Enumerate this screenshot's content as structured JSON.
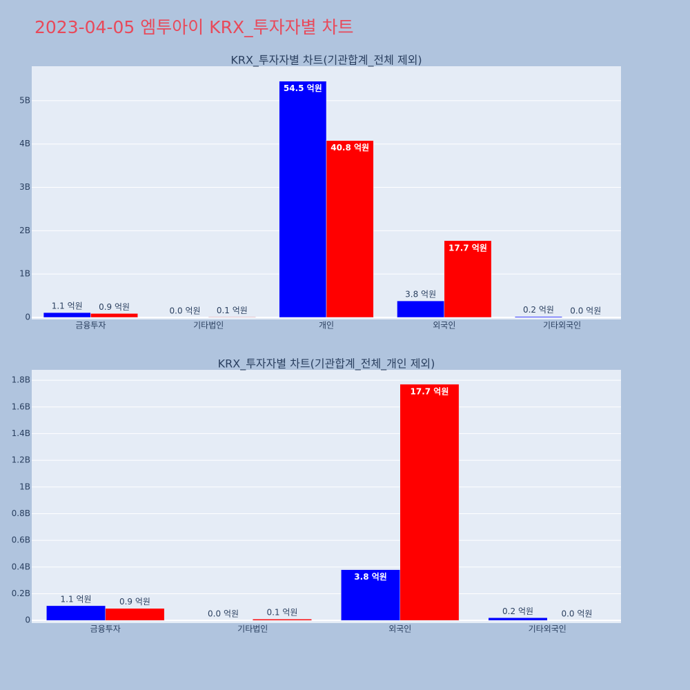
{
  "title": "2023-04-05 엠투아이 KRX_투자자별 차트",
  "chart_data": [
    {
      "type": "bar",
      "title": "KRX_투자자별 차트(기관합계_전체 제외)",
      "categories": [
        "금융투자",
        "기타법인",
        "개인",
        "외국인",
        "기타외국인"
      ],
      "series": [
        {
          "color": "#0000ff",
          "values": [
            110000000,
            0,
            5450000000,
            380000000,
            20000000
          ],
          "value_labels": [
            "1.1 억원",
            "0.0 억원",
            "54.5 억원",
            "3.8 억원",
            "0.2 억원"
          ]
        },
        {
          "color": "#ff0000",
          "values": [
            90000000,
            10000000,
            4080000000,
            1770000000,
            0
          ],
          "value_labels": [
            "0.9 억원",
            "0.1 억원",
            "40.8 억원",
            "17.7 억원",
            "0.0 억원"
          ]
        }
      ],
      "ylim": [
        -48000000,
        5795000000
      ],
      "yticks": [
        0,
        {
          "value": 1000000000,
          "label": "1B"
        },
        {
          "value": 2000000000,
          "label": "2B"
        },
        {
          "value": 3000000000,
          "label": "3B"
        },
        {
          "value": 4000000000,
          "label": "4B"
        },
        {
          "value": 5000000000,
          "label": "5B"
        }
      ],
      "grid": true
    },
    {
      "type": "bar",
      "title": "KRX_투자자별 차트(기관합계_전체_개인 제외)",
      "categories": [
        "금융투자",
        "기타법인",
        "외국인",
        "기타외국인"
      ],
      "series": [
        {
          "color": "#0000ff",
          "values": [
            110000000,
            0,
            380000000,
            20000000
          ],
          "value_labels": [
            "1.1 억원",
            "0.0 억원",
            "3.8 억원",
            "0.2 억원"
          ]
        },
        {
          "color": "#ff0000",
          "values": [
            90000000,
            10000000,
            1770000000,
            0
          ],
          "value_labels": [
            "0.9 억원",
            "0.1 억원",
            "17.7 억원",
            "0.0 억원"
          ]
        }
      ],
      "ylim": [
        -20000000,
        1878000000
      ],
      "yticks": [
        0,
        {
          "value": 200000000,
          "label": "0.2B"
        },
        {
          "value": 400000000,
          "label": "0.4B"
        },
        {
          "value": 600000000,
          "label": "0.6B"
        },
        {
          "value": 800000000,
          "label": "0.8B"
        },
        {
          "value": 1000000000,
          "label": "1B"
        },
        {
          "value": 1200000000,
          "label": "1.2B"
        },
        {
          "value": 1400000000,
          "label": "1.4B"
        },
        {
          "value": 1600000000,
          "label": "1.6B"
        },
        {
          "value": 1800000000,
          "label": "1.8B"
        }
      ],
      "grid": true
    }
  ]
}
